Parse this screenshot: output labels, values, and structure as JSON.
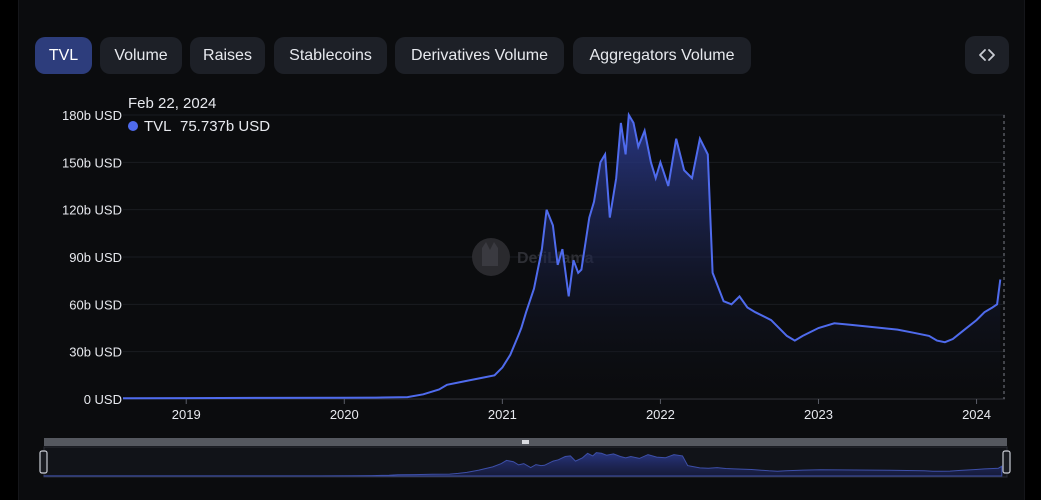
{
  "tabs": [
    {
      "label": "TVL",
      "active": true
    },
    {
      "label": "Volume",
      "active": false
    },
    {
      "label": "Raises",
      "active": false
    },
    {
      "label": "Stablecoins",
      "active": false
    },
    {
      "label": "Derivatives Volume",
      "active": false
    },
    {
      "label": "Aggregators Volume",
      "active": false
    }
  ],
  "embed_icon": "code-brackets-icon",
  "tooltip": {
    "date": "Feb 22, 2024",
    "series": "TVL",
    "value": "75.737b USD",
    "marker_color": "#4f6bed"
  },
  "watermark": "DefiLlama",
  "colors": {
    "line": "#4f6bed",
    "accent": "#2d3d7c",
    "area_top": "#2b3a8c"
  },
  "chart_data": {
    "type": "area",
    "series": [
      {
        "name": "TVL",
        "color": "#4f6bed"
      }
    ],
    "yticks": [
      "0 USD",
      "30b USD",
      "60b USD",
      "90b USD",
      "120b USD",
      "150b USD",
      "180b USD"
    ],
    "ylim": [
      0,
      180
    ],
    "xticks": [
      "2019",
      "2020",
      "2021",
      "2022",
      "2023",
      "2024"
    ],
    "xlim": [
      2018.6,
      2024.18
    ],
    "grid": true,
    "x": [
      2018.6,
      2019.0,
      2019.5,
      2020.0,
      2020.2,
      2020.4,
      2020.5,
      2020.6,
      2020.65,
      2020.75,
      2020.85,
      2020.95,
      2021.0,
      2021.05,
      2021.1,
      2021.12,
      2021.15,
      2021.2,
      2021.25,
      2021.28,
      2021.32,
      2021.35,
      2021.38,
      2021.42,
      2021.45,
      2021.48,
      2021.5,
      2021.55,
      2021.58,
      2021.62,
      2021.65,
      2021.68,
      2021.72,
      2021.75,
      2021.78,
      2021.8,
      2021.83,
      2021.86,
      2021.9,
      2021.94,
      2021.97,
      2022.0,
      2022.05,
      2022.1,
      2022.15,
      2022.2,
      2022.25,
      2022.3,
      2022.33,
      2022.35,
      2022.4,
      2022.45,
      2022.5,
      2022.55,
      2022.6,
      2022.7,
      2022.8,
      2022.85,
      2022.9,
      2023.0,
      2023.1,
      2023.2,
      2023.3,
      2023.4,
      2023.5,
      2023.6,
      2023.7,
      2023.75,
      2023.8,
      2023.85,
      2023.9,
      2024.0,
      2024.05,
      2024.1,
      2024.13,
      2024.15
    ],
    "values": [
      0.5,
      0.6,
      0.7,
      0.8,
      0.9,
      1.2,
      3,
      6,
      9,
      11,
      13,
      15,
      20,
      28,
      40,
      45,
      55,
      70,
      95,
      120,
      110,
      85,
      95,
      65,
      88,
      80,
      82,
      115,
      125,
      150,
      155,
      115,
      140,
      175,
      155,
      180,
      175,
      160,
      170,
      150,
      140,
      150,
      135,
      165,
      145,
      140,
      165,
      155,
      80,
      75,
      62,
      60,
      65,
      58,
      55,
      50,
      40,
      37,
      40,
      45,
      48,
      47,
      46,
      45,
      44,
      42,
      40,
      37,
      36,
      38,
      42,
      50,
      55,
      58,
      60,
      75.737
    ]
  }
}
